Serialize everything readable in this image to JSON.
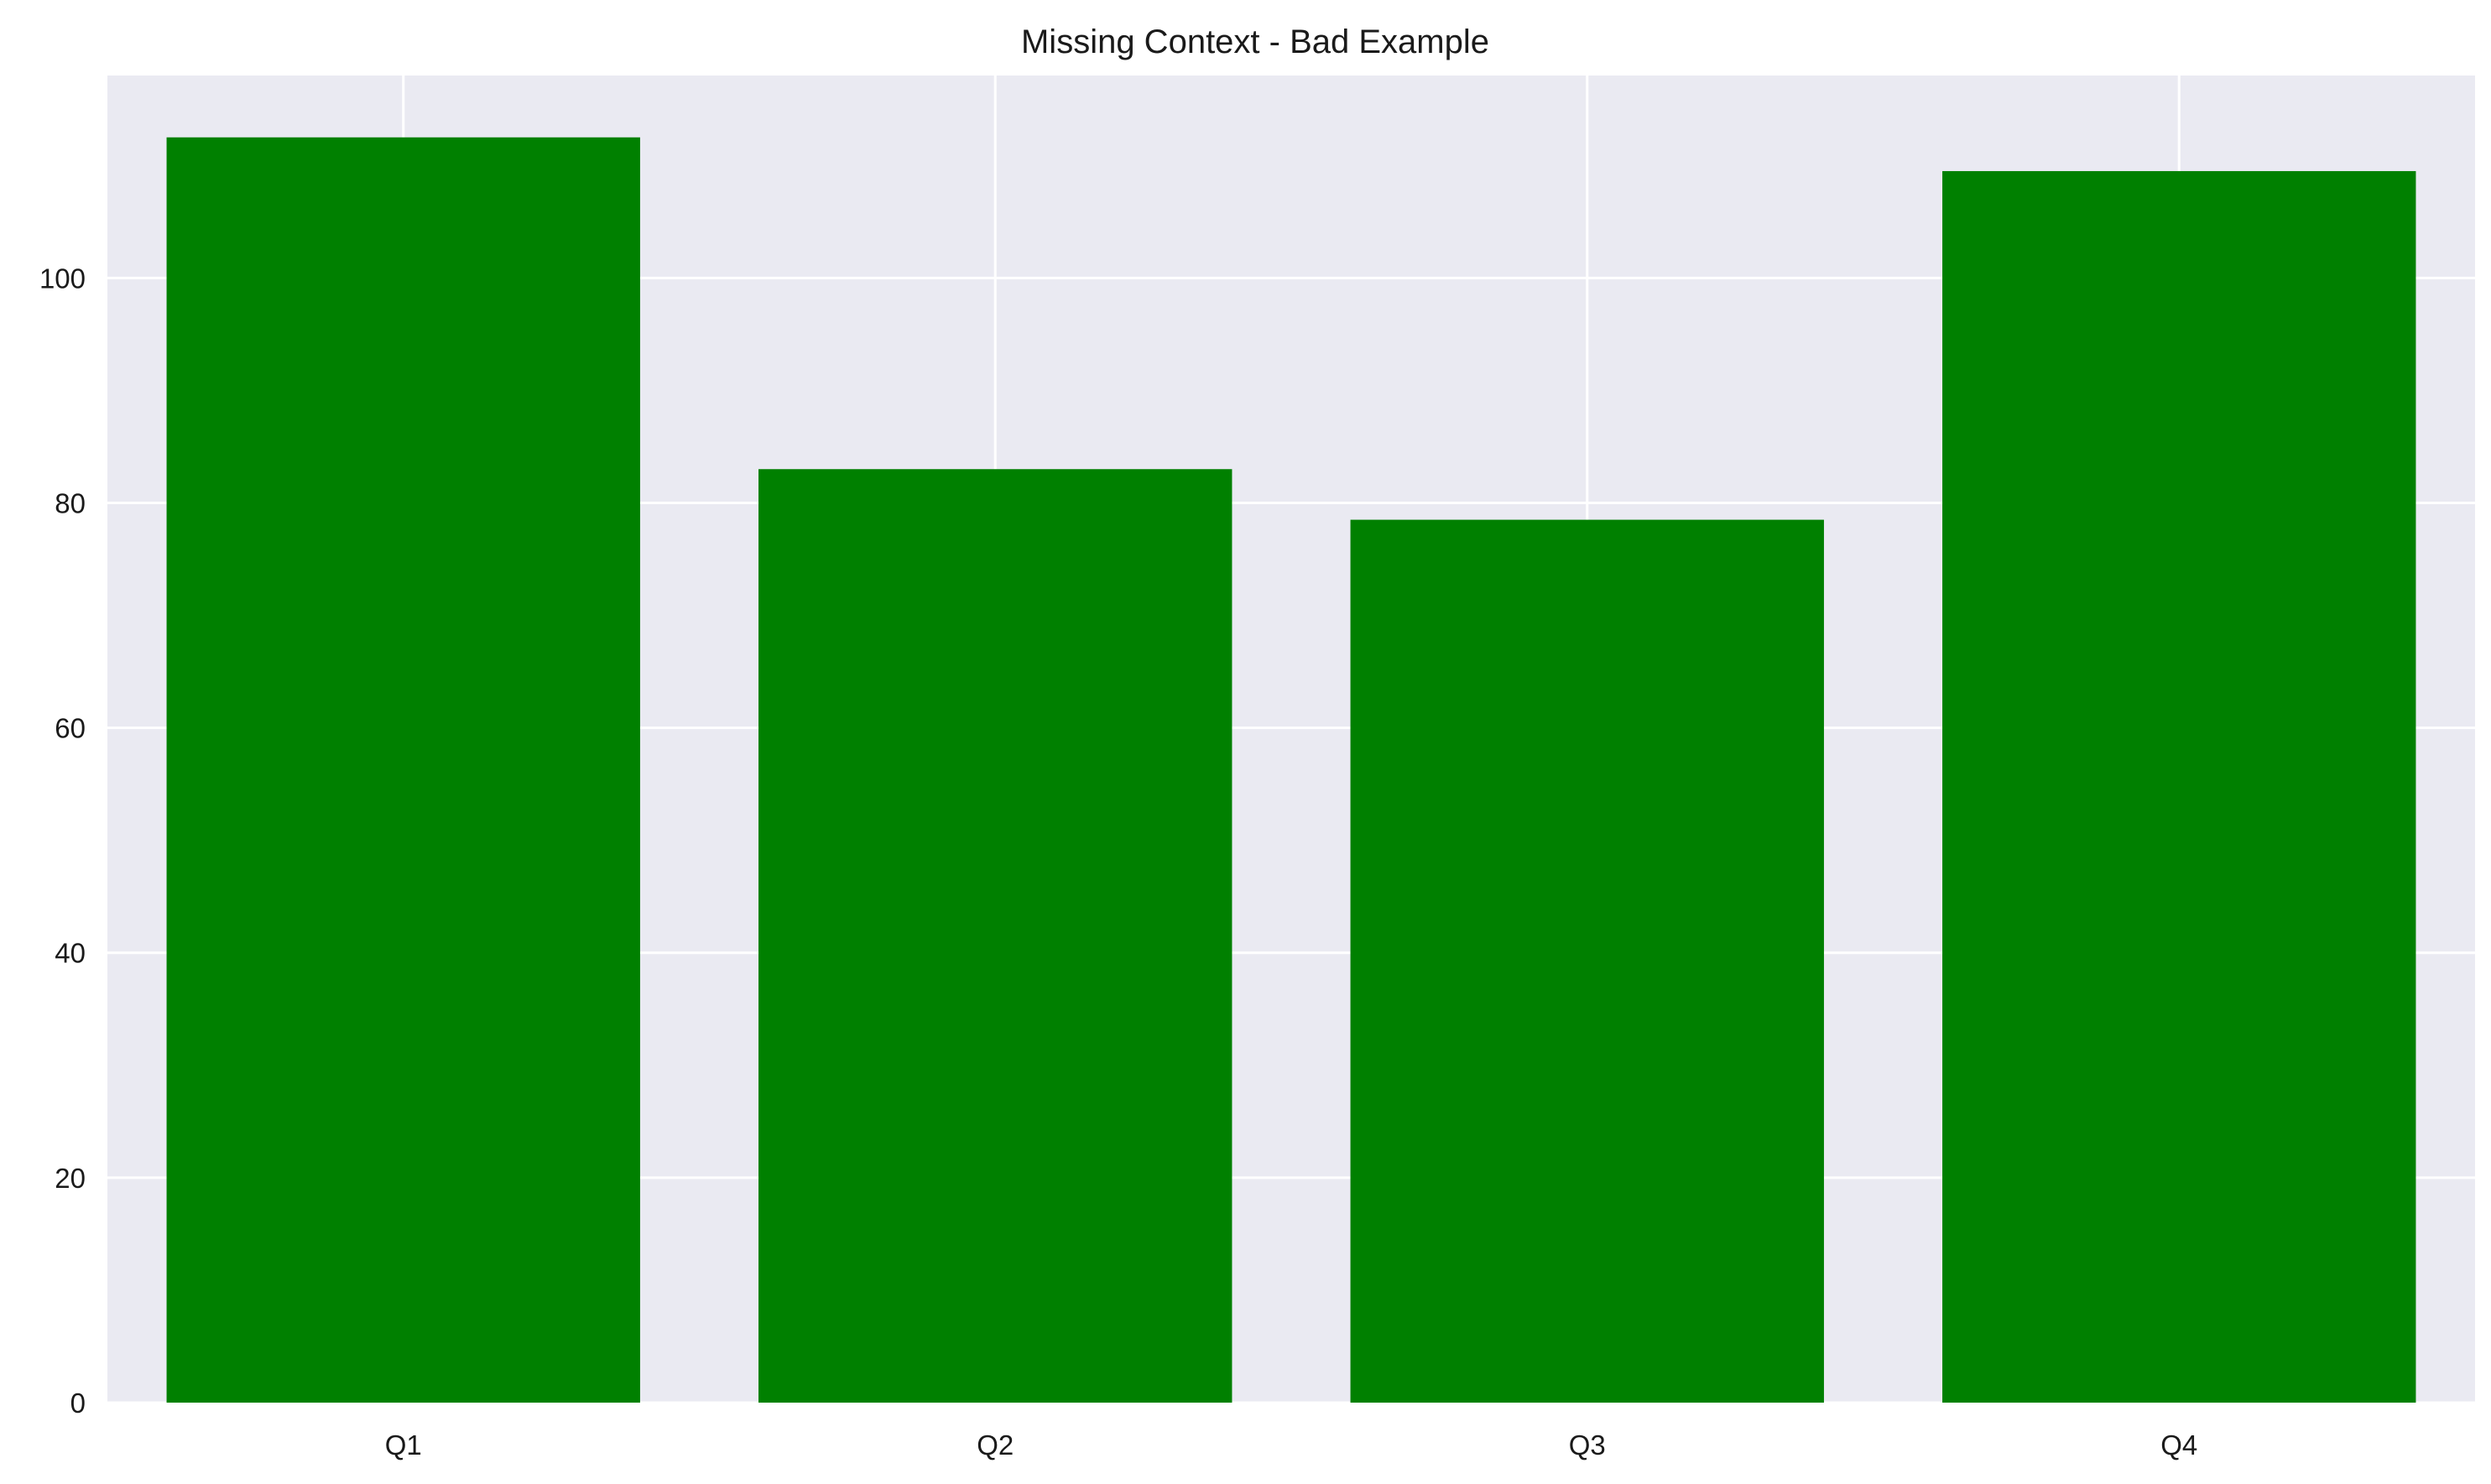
{
  "chart_data": {
    "type": "bar",
    "title": "Missing Context - Bad Example",
    "xlabel": "",
    "ylabel": "",
    "categories": [
      "Q1",
      "Q2",
      "Q3",
      "Q4"
    ],
    "values": [
      112.5,
      83,
      78.5,
      109.5
    ],
    "ylim": [
      0,
      118
    ],
    "yticks": [
      0,
      20,
      40,
      60,
      80,
      100
    ],
    "grid": true,
    "legend": "none",
    "colors": {
      "bar": "#008000",
      "plot_background": "#eaeaf2",
      "grid": "#ffffff"
    }
  }
}
